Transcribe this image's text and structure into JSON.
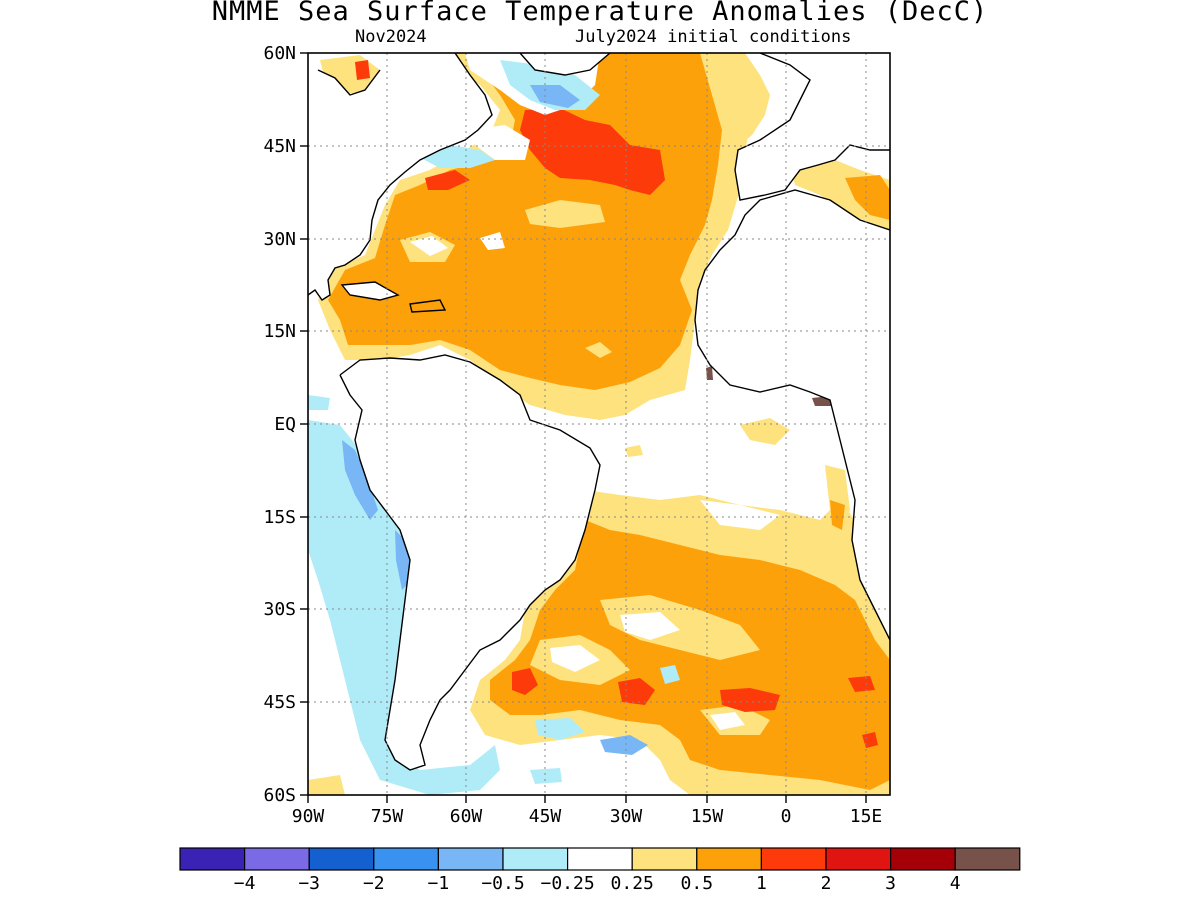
{
  "title": "NMME Sea Surface Temperature Anomalies (DecC)",
  "subtitle_left": "Nov2024",
  "subtitle_right": "July2024 initial conditions",
  "lat_labels": [
    "60N",
    "45N",
    "30N",
    "15N",
    "EQ",
    "15S",
    "30S",
    "45S",
    "60S"
  ],
  "lon_labels": [
    "90W",
    "75W",
    "60W",
    "45W",
    "30W",
    "15W",
    "0",
    "15E"
  ],
  "colorbar": {
    "colors": [
      "#3a22b4",
      "#7a6ae6",
      "#1560d0",
      "#3a92f0",
      "#78b6f6",
      "#b0ecf8",
      "#ffffff",
      "#fde27e",
      "#fda10a",
      "#fd3a0a",
      "#e01410",
      "#a50008",
      "#77524a"
    ],
    "labels": [
      "−4",
      "−3",
      "−2",
      "−1",
      "−0.5",
      "−0.25",
      "0.25",
      "0.5",
      "1",
      "2",
      "3",
      "4"
    ]
  },
  "chart_data": {
    "type": "heatmap",
    "title": "NMME Sea Surface Temperature Anomalies (DecC)",
    "subtitle": "Nov2024  July2024 initial conditions",
    "x_range": [
      "90W",
      "18E"
    ],
    "y_range": [
      "60S",
      "60N"
    ],
    "levels": [
      -4,
      -3,
      -2,
      -1,
      -0.5,
      -0.25,
      0.25,
      0.5,
      1,
      2,
      3,
      4
    ],
    "grid": true
  }
}
